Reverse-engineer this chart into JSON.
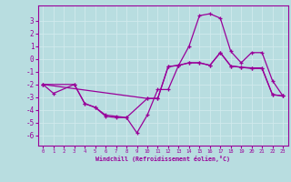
{
  "xlabel": "Windchill (Refroidissement éolien,°C)",
  "xlim": [
    -0.5,
    23.5
  ],
  "ylim": [
    -6.8,
    4.2
  ],
  "yticks": [
    3,
    2,
    1,
    0,
    -1,
    -2,
    -3,
    -4,
    -5,
    -6
  ],
  "xticks": [
    0,
    1,
    2,
    3,
    4,
    5,
    6,
    7,
    8,
    9,
    10,
    11,
    12,
    13,
    14,
    15,
    16,
    17,
    18,
    19,
    20,
    21,
    22,
    23
  ],
  "bg_color": "#b8dde0",
  "line_color": "#990099",
  "grid_color": "#d0eaed",
  "curve1_x": [
    0,
    1,
    3,
    4,
    5,
    6,
    7,
    8,
    9,
    10,
    11,
    12,
    13,
    14,
    15,
    16,
    17,
    18,
    19,
    20,
    21,
    22,
    23
  ],
  "curve1_y": [
    -2.0,
    -2.7,
    -2.0,
    -3.5,
    -3.8,
    -4.4,
    -4.5,
    -4.6,
    -5.8,
    -4.4,
    -2.4,
    -2.4,
    -0.5,
    1.0,
    3.4,
    3.55,
    3.2,
    0.6,
    -0.3,
    0.5,
    0.5,
    -1.7,
    -2.9
  ],
  "curve2_x": [
    0,
    3,
    4,
    5,
    6,
    7,
    8,
    10,
    11,
    12,
    13,
    14,
    15,
    16,
    17,
    18,
    19,
    20,
    21,
    22,
    23
  ],
  "curve2_y": [
    -2.0,
    -2.0,
    -3.5,
    -3.8,
    -4.5,
    -4.6,
    -4.6,
    -3.1,
    -3.1,
    -0.6,
    -0.5,
    -0.3,
    -0.3,
    -0.5,
    0.5,
    -0.55,
    -0.65,
    -0.7,
    -0.7,
    -2.8,
    -2.9
  ],
  "curve3_x": [
    0,
    10,
    11,
    12,
    13,
    14,
    15,
    16,
    17,
    18,
    19,
    20,
    21,
    22,
    23
  ],
  "curve3_y": [
    -2.0,
    -3.1,
    -3.1,
    -0.6,
    -0.5,
    -0.3,
    -0.3,
    -0.5,
    0.5,
    -0.55,
    -0.65,
    -0.75,
    -0.75,
    -2.8,
    -2.9
  ]
}
